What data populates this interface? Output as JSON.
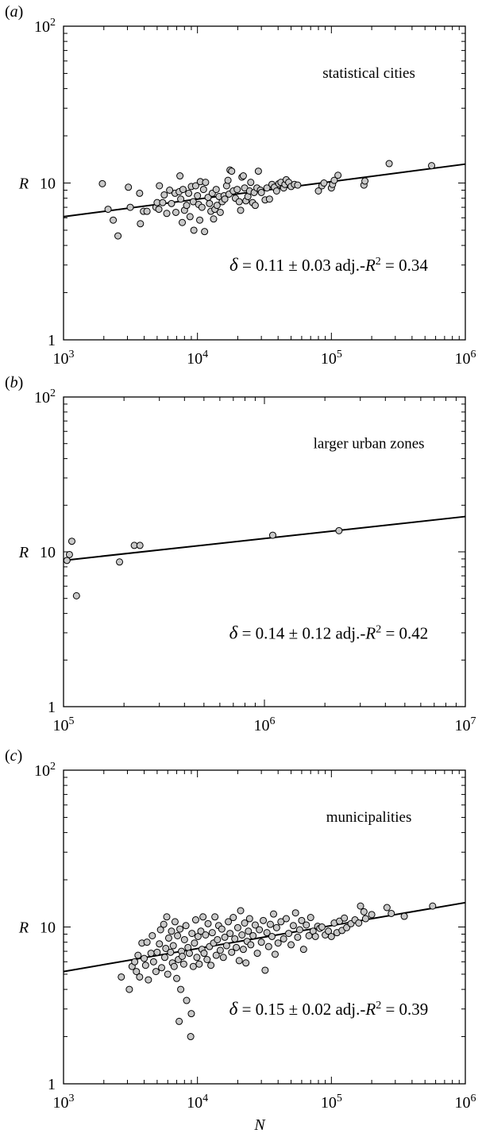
{
  "figure": {
    "xlabel": "N",
    "ylabel": "R"
  },
  "chart_data": [
    {
      "type": "scatter",
      "panel_label": "(a)",
      "annotation": "statistical cities",
      "stats_text": "δ = 0.11 ± 0.03   adj.-R² = 0.34",
      "xlabel": "",
      "ylabel": "R",
      "x_scale": "log",
      "y_scale": "log",
      "xlim": [
        1000,
        1000000
      ],
      "ylim": [
        1,
        100
      ],
      "x_ticks": [
        {
          "base": "10",
          "exp": "3",
          "v": 1000
        },
        {
          "base": "10",
          "exp": "4",
          "v": 10000
        },
        {
          "base": "10",
          "exp": "5",
          "v": 100000
        },
        {
          "base": "10",
          "exp": "6",
          "v": 1000000
        }
      ],
      "y_ticks": [
        {
          "base": "1",
          "exp": "",
          "v": 1
        },
        {
          "base": "10",
          "exp": "",
          "v": 10
        },
        {
          "base": "10",
          "exp": "2",
          "v": 100
        }
      ],
      "fit": {
        "delta": 0.11,
        "x": [
          1000,
          1000000
        ],
        "y": [
          6.1,
          13.2
        ]
      },
      "points": [
        [
          1950,
          9.9
        ],
        [
          2150,
          6.8
        ],
        [
          2350,
          5.8
        ],
        [
          2550,
          4.6
        ],
        [
          3050,
          9.4
        ],
        [
          3150,
          7.0
        ],
        [
          3700,
          8.6
        ],
        [
          3750,
          5.5
        ],
        [
          3950,
          6.6
        ],
        [
          4200,
          6.6
        ],
        [
          4900,
          7.0
        ],
        [
          5000,
          7.5
        ],
        [
          5150,
          6.8
        ],
        [
          5200,
          9.6
        ],
        [
          5500,
          7.5
        ],
        [
          5650,
          8.4
        ],
        [
          5900,
          6.4
        ],
        [
          6200,
          9.0
        ],
        [
          6400,
          7.4
        ],
        [
          6800,
          8.6
        ],
        [
          6900,
          6.5
        ],
        [
          7300,
          8.8
        ],
        [
          7400,
          11.1
        ],
        [
          7500,
          7.9
        ],
        [
          7700,
          5.6
        ],
        [
          7800,
          9.1
        ],
        [
          8000,
          6.7
        ],
        [
          8300,
          7.2
        ],
        [
          8600,
          8.6
        ],
        [
          8800,
          6.1
        ],
        [
          9000,
          9.5
        ],
        [
          9300,
          7.6
        ],
        [
          9400,
          5.0
        ],
        [
          9700,
          9.6
        ],
        [
          10000,
          8.3
        ],
        [
          10200,
          7.3
        ],
        [
          10400,
          5.8
        ],
        [
          10500,
          10.2
        ],
        [
          10800,
          7.0
        ],
        [
          11100,
          9.1
        ],
        [
          11300,
          4.9
        ],
        [
          11500,
          10.1
        ],
        [
          12000,
          8.1
        ],
        [
          12300,
          7.4
        ],
        [
          12600,
          6.6
        ],
        [
          12900,
          8.6
        ],
        [
          13200,
          5.9
        ],
        [
          13500,
          6.8
        ],
        [
          13800,
          9.1
        ],
        [
          14000,
          7.2
        ],
        [
          14500,
          8.2
        ],
        [
          14800,
          6.5
        ],
        [
          15300,
          7.6
        ],
        [
          15800,
          8.3
        ],
        [
          16000,
          7.9
        ],
        [
          16500,
          9.6
        ],
        [
          16900,
          10.4
        ],
        [
          17200,
          8.5
        ],
        [
          17500,
          12.1
        ],
        [
          18000,
          11.9
        ],
        [
          18500,
          8.9
        ],
        [
          19200,
          8.0
        ],
        [
          19800,
          9.1
        ],
        [
          20500,
          7.6
        ],
        [
          21000,
          6.7
        ],
        [
          21500,
          10.9
        ],
        [
          22000,
          11.1
        ],
        [
          22500,
          9.3
        ],
        [
          23000,
          7.7
        ],
        [
          23800,
          8.2
        ],
        [
          24500,
          8.9
        ],
        [
          25000,
          10.1
        ],
        [
          25800,
          7.5
        ],
        [
          26500,
          8.7
        ],
        [
          27000,
          7.2
        ],
        [
          27800,
          9.3
        ],
        [
          28500,
          11.9
        ],
        [
          29500,
          9.0
        ],
        [
          30000,
          8.7
        ],
        [
          32000,
          7.8
        ],
        [
          33000,
          9.3
        ],
        [
          34500,
          7.9
        ],
        [
          36000,
          9.8
        ],
        [
          37500,
          9.4
        ],
        [
          39000,
          8.9
        ],
        [
          40500,
          9.9
        ],
        [
          42000,
          10.1
        ],
        [
          44000,
          9.3
        ],
        [
          45000,
          9.8
        ],
        [
          46000,
          10.5
        ],
        [
          48000,
          10.1
        ],
        [
          50000,
          9.5
        ],
        [
          53000,
          9.8
        ],
        [
          56000,
          9.7
        ],
        [
          80000,
          8.9
        ],
        [
          85000,
          9.6
        ],
        [
          88000,
          10.0
        ],
        [
          100000,
          9.3
        ],
        [
          102000,
          9.8
        ],
        [
          105000,
          10.4
        ],
        [
          112000,
          11.2
        ],
        [
          175000,
          9.7
        ],
        [
          178000,
          10.3
        ],
        [
          270000,
          13.3
        ],
        [
          560000,
          12.9
        ]
      ]
    },
    {
      "type": "scatter",
      "panel_label": "(b)",
      "annotation": "larger urban zones",
      "stats_text": "δ = 0.14 ± 0.12   adj.-R² = 0.42",
      "xlabel": "",
      "ylabel": "R",
      "x_scale": "log",
      "y_scale": "log",
      "xlim": [
        100000,
        10000000
      ],
      "ylim": [
        1,
        100
      ],
      "x_ticks": [
        {
          "base": "10",
          "exp": "5",
          "v": 100000
        },
        {
          "base": "10",
          "exp": "6",
          "v": 1000000
        },
        {
          "base": "10",
          "exp": "7",
          "v": 10000000
        }
      ],
      "y_ticks": [
        {
          "base": "1",
          "exp": "",
          "v": 1
        },
        {
          "base": "10",
          "exp": "",
          "v": 10
        },
        {
          "base": "10",
          "exp": "2",
          "v": 100
        }
      ],
      "fit": {
        "delta": 0.14,
        "x": [
          100000,
          10000000
        ],
        "y": [
          8.8,
          16.9
        ]
      },
      "points": [
        [
          104000,
          8.8
        ],
        [
          107000,
          9.6
        ],
        [
          110000,
          11.7
        ],
        [
          116000,
          5.2
        ],
        [
          190000,
          8.6
        ],
        [
          225000,
          11.0
        ],
        [
          240000,
          11.0
        ],
        [
          1100000,
          12.8
        ],
        [
          2350000,
          13.7
        ]
      ]
    },
    {
      "type": "scatter",
      "panel_label": "(c)",
      "annotation": "municipalities",
      "stats_text": "δ = 0.15 ± 0.02   adj.-R² = 0.39",
      "xlabel": "N",
      "ylabel": "R",
      "x_scale": "log",
      "y_scale": "log",
      "xlim": [
        1000,
        1000000
      ],
      "ylim": [
        1,
        100
      ],
      "x_ticks": [
        {
          "base": "10",
          "exp": "3",
          "v": 1000
        },
        {
          "base": "10",
          "exp": "4",
          "v": 10000
        },
        {
          "base": "10",
          "exp": "5",
          "v": 100000
        },
        {
          "base": "10",
          "exp": "6",
          "v": 1000000
        }
      ],
      "y_ticks": [
        {
          "base": "1",
          "exp": "",
          "v": 1
        },
        {
          "base": "10",
          "exp": "",
          "v": 10
        },
        {
          "base": "10",
          "exp": "2",
          "v": 100
        }
      ],
      "fit": {
        "delta": 0.15,
        "x": [
          1000,
          1000000
        ],
        "y": [
          5.2,
          14.3
        ]
      },
      "points": [
        [
          2700,
          4.8
        ],
        [
          3100,
          4.0
        ],
        [
          3250,
          5.6
        ],
        [
          3400,
          6.0
        ],
        [
          3500,
          5.2
        ],
        [
          3600,
          6.6
        ],
        [
          3700,
          4.8
        ],
        [
          3850,
          7.9
        ],
        [
          4000,
          6.3
        ],
        [
          4100,
          5.7
        ],
        [
          4200,
          8.0
        ],
        [
          4300,
          4.6
        ],
        [
          4500,
          6.8
        ],
        [
          4600,
          8.8
        ],
        [
          4700,
          6.0
        ],
        [
          4900,
          5.2
        ],
        [
          5000,
          6.9
        ],
        [
          5200,
          7.8
        ],
        [
          5300,
          9.6
        ],
        [
          5400,
          5.5
        ],
        [
          5600,
          10.4
        ],
        [
          5700,
          6.4
        ],
        [
          5800,
          7.3
        ],
        [
          5900,
          11.6
        ],
        [
          6000,
          5.0
        ],
        [
          6100,
          8.5
        ],
        [
          6300,
          6.9
        ],
        [
          6400,
          9.4
        ],
        [
          6500,
          5.9
        ],
        [
          6600,
          7.6
        ],
        [
          6700,
          5.6
        ],
        [
          6800,
          10.8
        ],
        [
          7000,
          4.7
        ],
        [
          7100,
          8.8
        ],
        [
          7200,
          6.2
        ],
        [
          7300,
          2.5
        ],
        [
          7400,
          9.7
        ],
        [
          7500,
          4.0
        ],
        [
          7600,
          7.0
        ],
        [
          7700,
          6.5
        ],
        [
          7900,
          5.8
        ],
        [
          8000,
          8.3
        ],
        [
          8200,
          10.2
        ],
        [
          8300,
          3.4
        ],
        [
          8500,
          7.4
        ],
        [
          8700,
          6.8
        ],
        [
          8900,
          2.0
        ],
        [
          9000,
          2.8
        ],
        [
          9100,
          9.1
        ],
        [
          9300,
          5.6
        ],
        [
          9500,
          7.9
        ],
        [
          9700,
          11.1
        ],
        [
          9900,
          6.4
        ],
        [
          10100,
          8.7
        ],
        [
          10300,
          5.8
        ],
        [
          10600,
          9.4
        ],
        [
          10800,
          7.2
        ],
        [
          11000,
          11.6
        ],
        [
          11200,
          6.8
        ],
        [
          11500,
          8.9
        ],
        [
          11800,
          6.2
        ],
        [
          12000,
          10.5
        ],
        [
          12300,
          7.5
        ],
        [
          12600,
          5.7
        ],
        [
          12900,
          9.2
        ],
        [
          13200,
          7.9
        ],
        [
          13500,
          11.6
        ],
        [
          13800,
          6.6
        ],
        [
          14100,
          8.3
        ],
        [
          14400,
          10.2
        ],
        [
          14800,
          7.1
        ],
        [
          15200,
          9.7
        ],
        [
          15600,
          6.4
        ],
        [
          16000,
          8.6
        ],
        [
          16500,
          7.6
        ],
        [
          17000,
          10.8
        ],
        [
          17500,
          9.1
        ],
        [
          18000,
          6.9
        ],
        [
          18500,
          11.5
        ],
        [
          19000,
          8.4
        ],
        [
          19500,
          7.4
        ],
        [
          20000,
          9.9
        ],
        [
          20500,
          6.1
        ],
        [
          21000,
          12.7
        ],
        [
          21500,
          8.9
        ],
        [
          22000,
          7.2
        ],
        [
          22500,
          10.6
        ],
        [
          23000,
          5.9
        ],
        [
          23500,
          8.1
        ],
        [
          24000,
          9.4
        ],
        [
          24500,
          11.3
        ],
        [
          25000,
          7.7
        ],
        [
          26000,
          8.8
        ],
        [
          27000,
          10.3
        ],
        [
          28000,
          6.8
        ],
        [
          29000,
          9.6
        ],
        [
          30000,
          8.0
        ],
        [
          31000,
          11.0
        ],
        [
          32000,
          5.3
        ],
        [
          33000,
          9.2
        ],
        [
          34000,
          7.5
        ],
        [
          35000,
          10.4
        ],
        [
          36000,
          8.7
        ],
        [
          37000,
          12.1
        ],
        [
          38000,
          6.7
        ],
        [
          39000,
          9.9
        ],
        [
          40000,
          7.9
        ],
        [
          42000,
          10.8
        ],
        [
          44000,
          8.4
        ],
        [
          46000,
          11.3
        ],
        [
          48000,
          9.1
        ],
        [
          50000,
          7.7
        ],
        [
          52000,
          10.2
        ],
        [
          54000,
          12.3
        ],
        [
          56000,
          8.6
        ],
        [
          58000,
          9.6
        ],
        [
          60000,
          11.0
        ],
        [
          62000,
          7.2
        ],
        [
          65000,
          10.3
        ],
        [
          68000,
          8.8
        ],
        [
          70000,
          11.5
        ],
        [
          73000,
          9.4
        ],
        [
          76000,
          8.7
        ],
        [
          79000,
          10.1
        ],
        [
          82000,
          9.8
        ],
        [
          85000,
          10.0
        ],
        [
          90000,
          8.9
        ],
        [
          95000,
          9.4
        ],
        [
          100000,
          8.7
        ],
        [
          105000,
          10.6
        ],
        [
          110000,
          9.2
        ],
        [
          115000,
          10.9
        ],
        [
          120000,
          9.5
        ],
        [
          125000,
          11.4
        ],
        [
          130000,
          9.9
        ],
        [
          140000,
          10.5
        ],
        [
          150000,
          11.1
        ],
        [
          160000,
          10.6
        ],
        [
          165000,
          13.6
        ],
        [
          175000,
          12.5
        ],
        [
          180000,
          11.3
        ],
        [
          200000,
          12.0
        ],
        [
          260000,
          13.3
        ],
        [
          280000,
          12.2
        ],
        [
          350000,
          11.7
        ],
        [
          570000,
          13.6
        ]
      ]
    }
  ]
}
